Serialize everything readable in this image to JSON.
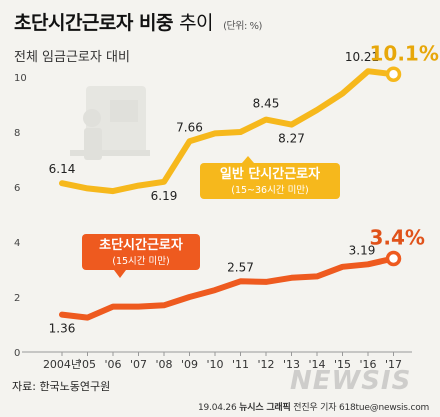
{
  "header": {
    "title_bold": "초단시간근로자 비중",
    "title_light": "추이",
    "unit": "(단위: %)",
    "subtitle": "전체 임금근로자 대비"
  },
  "footer": {
    "source": "자료: 한국노동연구원",
    "date": "19.04.26",
    "agency": "뉴시스 그래픽",
    "author": "전진우 기자 618tue@newsis.com",
    "watermark": "NEWSIS"
  },
  "colors": {
    "yellow": "#f6b81c",
    "yellow_label": "#e7a70a",
    "orange": "#ee5a1f",
    "orange_label": "#e0521a",
    "axis": "#999999",
    "background": "#f4f3ef"
  },
  "chart_data": {
    "type": "line",
    "x": [
      "2004년",
      "'05",
      "'06",
      "'07",
      "'08",
      "'09",
      "'10",
      "'11",
      "'12",
      "'13",
      "'14",
      "'15",
      "'16",
      "'17"
    ],
    "ylim": [
      0,
      10
    ],
    "yticks": [
      0,
      2,
      4,
      6,
      8,
      10
    ],
    "grid": false,
    "series": [
      {
        "name": "일반 단시간근로자",
        "sub_label": "(15~36시간 미만)",
        "color": "#f6b81c",
        "values": [
          6.14,
          5.95,
          5.85,
          6.05,
          6.19,
          7.66,
          7.95,
          8.0,
          8.45,
          8.27,
          8.8,
          9.4,
          10.21,
          10.1
        ],
        "labels": {
          "0": "6.14",
          "4": "6.19",
          "5": "7.66",
          "8": "8.45",
          "9": "8.27",
          "12": "10.21",
          "13": "10.1%"
        }
      },
      {
        "name": "초단시간근로자",
        "sub_label": "(15시간 미만)",
        "color": "#ee5a1f",
        "values": [
          1.36,
          1.25,
          1.65,
          1.65,
          1.7,
          2.0,
          2.25,
          2.57,
          2.55,
          2.7,
          2.75,
          3.1,
          3.19,
          3.4
        ],
        "labels": {
          "0": "1.36",
          "7": "2.57",
          "12": "3.19",
          "13": "3.4%"
        }
      }
    ]
  }
}
